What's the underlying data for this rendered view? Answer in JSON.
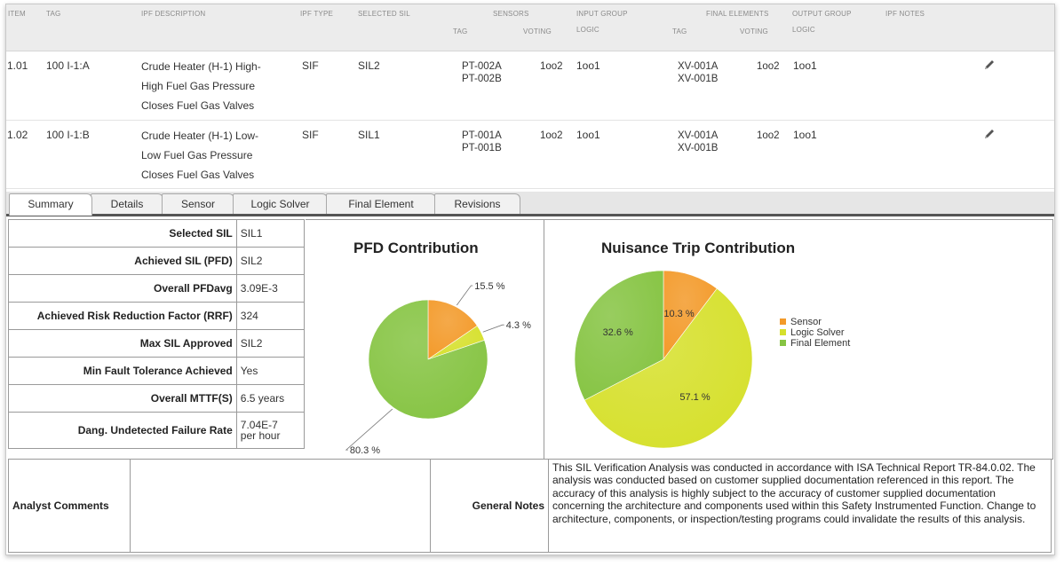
{
  "table": {
    "headers": {
      "item": "ITEM",
      "tag": "TAG",
      "ipf_description": "IPF DESCRIPTION",
      "ipf_type": "IPF TYPE",
      "selected_sil": "SELECTED SIL",
      "sensors": "SENSORS",
      "sensors_tag": "TAG",
      "sensors_voting": "VOTING",
      "input_group": "INPUT GROUP",
      "input_logic": "LOGIC",
      "final_elements": "FINAL ELEMENTS",
      "fe_tag": "TAG",
      "fe_voting": "VOTING",
      "output_group": "OUTPUT GROUP",
      "output_logic": "LOGIC",
      "ipf_notes": "IPF NOTES"
    },
    "rows": [
      {
        "item": "1.01",
        "tag": "100 I-1:A",
        "desc": [
          "Crude Heater (H-1) High-",
          "High Fuel Gas Pressure",
          "Closes Fuel Gas Valves"
        ],
        "ipf_type": "SIF",
        "selected_sil": "SIL2",
        "sensor_tags": [
          "PT-002A",
          "PT-002B"
        ],
        "sensor_voting": "1oo2",
        "input_logic": "1oo1",
        "fe_tags": [
          "XV-001A",
          "XV-001B"
        ],
        "fe_voting": "1oo2",
        "output_logic": "1oo1"
      },
      {
        "item": "1.02",
        "tag": "100 I-1:B",
        "desc": [
          "Crude Heater (H-1) Low-",
          "Low Fuel Gas Pressure",
          "Closes Fuel Gas Valves"
        ],
        "ipf_type": "SIF",
        "selected_sil": "SIL1",
        "sensor_tags": [
          "PT-001A",
          "PT-001B"
        ],
        "sensor_voting": "1oo2",
        "input_logic": "1oo1",
        "fe_tags": [
          "XV-001A",
          "XV-001B"
        ],
        "fe_voting": "1oo2",
        "output_logic": "1oo1"
      }
    ],
    "edit_icon": "pencil-icon"
  },
  "tabs": {
    "active": "Summary",
    "items": [
      "Summary",
      "Details",
      "Sensor",
      "Logic Solver",
      "Final Element",
      "Revisions"
    ]
  },
  "metrics": [
    {
      "label": "Selected SIL",
      "value": "SIL1"
    },
    {
      "label": "Achieved SIL (PFD)",
      "value": "SIL2"
    },
    {
      "label": "Overall PFDavg",
      "value": "3.09E-3"
    },
    {
      "label": "Achieved Risk Reduction Factor (RRF)",
      "value": "324"
    },
    {
      "label": "Max SIL Approved",
      "value": "SIL2"
    },
    {
      "label": "Min Fault Tolerance Achieved",
      "value": "Yes"
    },
    {
      "label": "Overall MTTF(S)",
      "value": "6.5 years"
    },
    {
      "label": "Dang. Undetected Failure Rate",
      "value_lines": [
        "7.04E-7",
        "per hour"
      ]
    }
  ],
  "chart_data": [
    {
      "type": "pie",
      "title": "PFD Contribution",
      "categories": [
        "Sensor",
        "Logic Solver",
        "Final Element"
      ],
      "values": [
        15.5,
        4.3,
        80.3
      ],
      "labels": [
        "15.5 %",
        "4.3 %",
        "80.3 %"
      ],
      "colors": [
        "#f39a2a",
        "#d6e02c",
        "#86c443"
      ]
    },
    {
      "type": "pie",
      "title": "Nuisance Trip Contribution",
      "categories": [
        "Sensor",
        "Logic Solver",
        "Final Element"
      ],
      "values": [
        10.3,
        57.1,
        32.6
      ],
      "labels": [
        "10.3 %",
        "57.1 %",
        "32.6 %"
      ],
      "colors": [
        "#f39a2a",
        "#d6e02c",
        "#86c443"
      ],
      "legend": [
        "Sensor",
        "Logic Solver",
        "Final Element"
      ],
      "legend_position": "right"
    }
  ],
  "bottom": {
    "analyst_comments_label": "Analyst Comments",
    "analyst_comments_value": "",
    "general_notes_label": "General Notes",
    "general_notes_text": "This SIL Verification Analysis was conducted in accordance with ISA Technical Report TR-84.0.02. The analysis was conducted based on customer supplied documentation referenced in this report. The accuracy of this analysis is highly subject to the accuracy of customer supplied documentation concerning the architecture and components used within this Safety Instrumented Function. Change to architecture, components, or inspection/testing programs could invalidate the results of this analysis."
  }
}
